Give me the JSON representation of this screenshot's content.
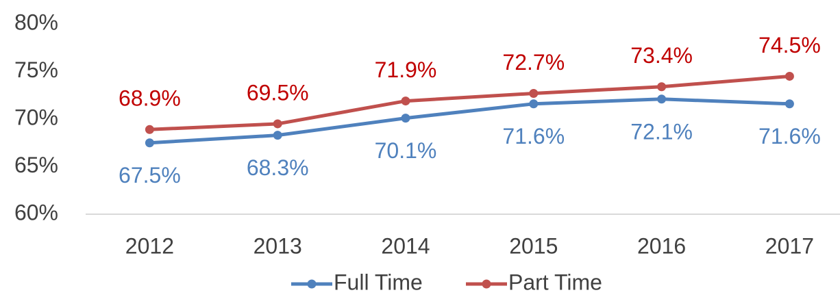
{
  "chart_data": {
    "type": "line",
    "categories": [
      "2012",
      "2013",
      "2014",
      "2015",
      "2016",
      "2017"
    ],
    "series": [
      {
        "name": "Full Time",
        "color": "#4f81bd",
        "label_color": "#4f81bd",
        "values": [
          67.5,
          68.3,
          70.1,
          71.6,
          72.1,
          71.6
        ],
        "value_labels": [
          "67.5%",
          "68.3%",
          "70.1%",
          "71.6%",
          "72.1%",
          "71.6%"
        ]
      },
      {
        "name": "Part Time",
        "color": "#c0504d",
        "label_color": "#c00000",
        "values": [
          68.9,
          69.5,
          71.9,
          72.7,
          73.4,
          74.5
        ],
        "value_labels": [
          "68.9%",
          "69.5%",
          "71.9%",
          "72.7%",
          "73.4%",
          "74.5%"
        ]
      }
    ],
    "ylim": [
      60,
      80
    ],
    "yticks": [
      {
        "value": 60,
        "label": "60%"
      },
      {
        "value": 65,
        "label": "65%"
      },
      {
        "value": 70,
        "label": "70%"
      },
      {
        "value": 75,
        "label": "75%"
      },
      {
        "value": 80,
        "label": "80%"
      }
    ],
    "grid": false,
    "legend": "bottom"
  }
}
